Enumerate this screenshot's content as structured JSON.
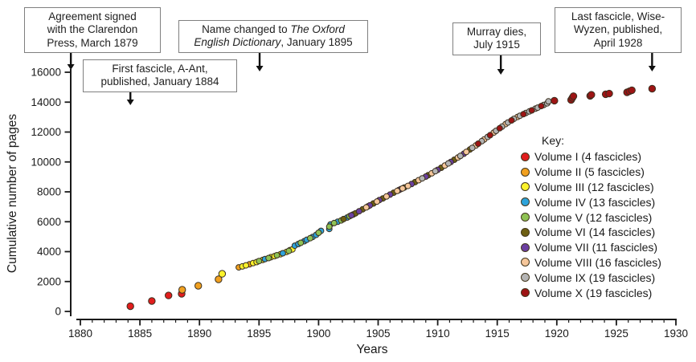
{
  "chart_data": {
    "type": "scatter",
    "title": "",
    "xlabel": "Years",
    "ylabel": "Cumulative number of pages",
    "xlim": [
      1880,
      1930
    ],
    "ylim": [
      0,
      16000
    ],
    "x_major_ticks": [
      1880,
      1885,
      1890,
      1895,
      1900,
      1905,
      1910,
      1915,
      1920,
      1925,
      1930
    ],
    "x_minor_tick_step": 1,
    "y_ticks": [
      0,
      2000,
      4000,
      6000,
      8000,
      10000,
      12000,
      14000,
      16000
    ],
    "grid": false,
    "legend_title": "Key:",
    "legend_position": "right-middle",
    "marker_outline_color": "#3a3020",
    "volumes": [
      {
        "label": "Volume I (4 fascicles)",
        "color": "#e11d1d",
        "points": [
          [
            1884.2,
            350
          ],
          [
            1886.0,
            700
          ],
          [
            1887.4,
            1070
          ],
          [
            1888.5,
            1180
          ]
        ]
      },
      {
        "label": "Volume II (5 fascicles)",
        "color": "#f1a01f",
        "points": [
          [
            1888.55,
            1450
          ],
          [
            1889.9,
            1720
          ],
          [
            1891.6,
            2150
          ],
          [
            1893.3,
            2950
          ],
          [
            1894.2,
            3150
          ]
        ]
      },
      {
        "label": "Volume III (12 fascicles)",
        "color": "#fcf32b",
        "points": [
          [
            1891.9,
            2520
          ],
          [
            1893.6,
            3010
          ],
          [
            1893.9,
            3080
          ],
          [
            1894.5,
            3230
          ],
          [
            1894.8,
            3300
          ],
          [
            1895.3,
            3440
          ],
          [
            1896.0,
            3630
          ],
          [
            1896.3,
            3700
          ],
          [
            1896.8,
            3830
          ],
          [
            1897.3,
            3980
          ],
          [
            1897.6,
            4100
          ],
          [
            1897.8,
            4150
          ]
        ]
      },
      {
        "label": "Volume IV (13 fascicles)",
        "color": "#2ea3da",
        "points": [
          [
            1895.5,
            3500
          ],
          [
            1897.0,
            3890
          ],
          [
            1898.0,
            4400
          ],
          [
            1898.3,
            4510
          ],
          [
            1898.8,
            4700
          ],
          [
            1899.0,
            4790
          ],
          [
            1899.5,
            4980
          ],
          [
            1899.8,
            5120
          ],
          [
            1900.2,
            5390
          ],
          [
            1900.9,
            5520
          ],
          [
            1901.0,
            5820
          ],
          [
            1901.6,
            6000
          ],
          [
            1902.4,
            6280
          ]
        ]
      },
      {
        "label": "Volume V (12 fascicles)",
        "color": "#8fc254",
        "points": [
          [
            1895.0,
            3370
          ],
          [
            1895.8,
            3570
          ],
          [
            1896.5,
            3760
          ],
          [
            1897.5,
            4050
          ],
          [
            1898.5,
            4590
          ],
          [
            1899.3,
            4900
          ],
          [
            1900.0,
            5260
          ],
          [
            1900.9,
            5670
          ],
          [
            1901.3,
            5910
          ],
          [
            1901.9,
            6090
          ],
          [
            1902.6,
            6370
          ],
          [
            1902.9,
            6480
          ]
        ]
      },
      {
        "label": "Volume VI (14 fascicles)",
        "color": "#6e5f12",
        "points": [
          [
            1902.1,
            6180
          ],
          [
            1903.1,
            6560
          ],
          [
            1903.7,
            6830
          ],
          [
            1904.15,
            7030
          ],
          [
            1904.6,
            7220
          ],
          [
            1905.4,
            7560
          ],
          [
            1906.3,
            7940
          ],
          [
            1906.75,
            8120
          ],
          [
            1907.2,
            8290
          ],
          [
            1908.1,
            8650
          ],
          [
            1909.2,
            9110
          ],
          [
            1910.3,
            9610
          ],
          [
            1911.4,
            10150
          ],
          [
            1912.7,
            10830
          ]
        ]
      },
      {
        "label": "Volume VII (11 fascicles)",
        "color": "#6b3fa0",
        "points": [
          [
            1902.75,
            6430
          ],
          [
            1903.4,
            6700
          ],
          [
            1904.3,
            7090
          ],
          [
            1905.1,
            7450
          ],
          [
            1906.0,
            7820
          ],
          [
            1906.9,
            8180
          ],
          [
            1907.8,
            8520
          ],
          [
            1909.0,
            9020
          ],
          [
            1910.0,
            9470
          ],
          [
            1911.1,
            10000
          ],
          [
            1912.2,
            10550
          ]
        ]
      },
      {
        "label": "Volume VIII (16 fascicles)",
        "color": "#f6c79b",
        "points": [
          [
            1904.0,
            6960
          ],
          [
            1904.9,
            7350
          ],
          [
            1905.7,
            7690
          ],
          [
            1906.6,
            8060
          ],
          [
            1907.05,
            8230
          ],
          [
            1907.5,
            8400
          ],
          [
            1908.4,
            8780
          ],
          [
            1909.5,
            9240
          ],
          [
            1910.6,
            9760
          ],
          [
            1911.7,
            10300
          ],
          [
            1912.4,
            10670
          ],
          [
            1913.2,
            11100
          ],
          [
            1913.9,
            11500
          ],
          [
            1914.7,
            11960
          ],
          [
            1915.7,
            12530
          ],
          [
            1916.7,
            13010
          ]
        ]
      },
      {
        "label": "Volume IX (19 fascicles)",
        "color": "#b4b4b4",
        "points": [
          [
            1908.7,
            8900
          ],
          [
            1909.8,
            9380
          ],
          [
            1910.9,
            9900
          ],
          [
            1911.9,
            10400
          ],
          [
            1912.9,
            10940
          ],
          [
            1913.7,
            11390
          ],
          [
            1914.2,
            11670
          ],
          [
            1914.9,
            12080
          ],
          [
            1915.4,
            12360
          ],
          [
            1915.9,
            12640
          ],
          [
            1916.4,
            12880
          ],
          [
            1916.9,
            13090
          ],
          [
            1917.4,
            13270
          ],
          [
            1917.7,
            13380
          ],
          [
            1918.2,
            13560
          ],
          [
            1918.4,
            13630
          ],
          [
            1918.9,
            13810
          ],
          [
            1919.2,
            13920
          ],
          [
            1919.3,
            14050
          ]
        ]
      },
      {
        "label": "Volume X (19 fascicles)",
        "color": "#9d1414",
        "points": [
          [
            1913.4,
            11220
          ],
          [
            1914.4,
            11790
          ],
          [
            1915.2,
            12250
          ],
          [
            1916.2,
            12780
          ],
          [
            1917.2,
            13200
          ],
          [
            1917.9,
            13450
          ],
          [
            1918.7,
            13740
          ],
          [
            1919.8,
            14100
          ],
          [
            1921.2,
            14150
          ],
          [
            1921.3,
            14280
          ],
          [
            1921.4,
            14400
          ],
          [
            1922.8,
            14420
          ],
          [
            1922.9,
            14490
          ],
          [
            1924.1,
            14530
          ],
          [
            1924.4,
            14570
          ],
          [
            1925.9,
            14660
          ],
          [
            1926.1,
            14730
          ],
          [
            1926.3,
            14800
          ],
          [
            1928.0,
            14900
          ]
        ]
      }
    ],
    "annotations": [
      {
        "arrow_year": 1879.2,
        "lines": [
          [
            {
              "t": "Agreement signed"
            }
          ],
          [
            {
              "t": "with the Clarendon"
            }
          ],
          [
            {
              "t": "Press, March 1879"
            }
          ]
        ]
      },
      {
        "arrow_year": 1884.2,
        "lines": [
          [
            {
              "t": "First fascicle, A-Ant,"
            }
          ],
          [
            {
              "t": "published, January 1884"
            }
          ]
        ]
      },
      {
        "arrow_year": 1895.05,
        "lines": [
          [
            {
              "t": "Name changed to "
            },
            {
              "t": "The Oxford",
              "i": true
            }
          ],
          [
            {
              "t": "English Dictionary",
              "i": true
            },
            {
              "t": ", January 1895"
            }
          ]
        ]
      },
      {
        "arrow_year": 1915.3,
        "lines": [
          [
            {
              "t": "Murray dies,"
            }
          ],
          [
            {
              "t": "July 1915"
            }
          ]
        ]
      },
      {
        "arrow_year": 1928.0,
        "lines": [
          [
            {
              "t": "Last fascicle, Wise-"
            }
          ],
          [
            {
              "t": "Wyzen, published,"
            }
          ],
          [
            {
              "t": "April 1928"
            }
          ]
        ]
      }
    ]
  }
}
